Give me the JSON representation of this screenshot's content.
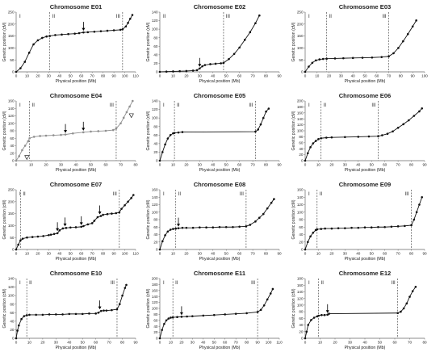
{
  "chart_data": [
    {
      "type": "scatter",
      "title": "Chromosome E01",
      "xlabel": "Physical position (Mb)",
      "ylabel": "Genetic position (cM)",
      "xlim": [
        0,
        110
      ],
      "xticks": [
        0,
        10,
        20,
        30,
        40,
        50,
        60,
        70,
        80,
        90,
        100,
        110
      ],
      "ylim": [
        0,
        250
      ],
      "yticks": [
        0,
        50,
        100,
        150,
        200,
        250
      ],
      "regions": [
        "I",
        "II",
        "III"
      ],
      "boundaries": [
        31,
        98
      ],
      "x": [
        0,
        4,
        8,
        12,
        16,
        20,
        24,
        28,
        31,
        36,
        42,
        48,
        54,
        58,
        62,
        66,
        72,
        78,
        84,
        90,
        96,
        98,
        101,
        103,
        105,
        107
      ],
      "y": [
        0,
        15,
        42,
        80,
        115,
        132,
        142,
        148,
        150,
        154,
        156,
        158,
        160,
        162,
        165,
        166,
        168,
        170,
        172,
        174,
        176,
        178,
        190,
        205,
        222,
        238
      ],
      "markers": [
        {
          "x": 62,
          "y": 165,
          "type": "arrow"
        }
      ]
    },
    {
      "type": "scatter",
      "title": "Chromosome E02",
      "xlabel": "Physical position (Mb)",
      "ylabel": "Genetic position (cM)",
      "xlim": [
        0,
        90
      ],
      "xticks": [
        0,
        10,
        20,
        30,
        40,
        50,
        60,
        70,
        80,
        90
      ],
      "ylim": [
        0,
        140
      ],
      "yticks": [
        0,
        20,
        40,
        60,
        80,
        100,
        120,
        140
      ],
      "regions": [
        "II",
        "III"
      ],
      "boundaries": [
        48
      ],
      "x": [
        0,
        5,
        10,
        15,
        20,
        25,
        28,
        30,
        32,
        34,
        38,
        42,
        46,
        48,
        52,
        56,
        60,
        64,
        68,
        72,
        75
      ],
      "y": [
        0,
        0.5,
        1,
        1.5,
        2,
        3,
        4,
        8,
        13,
        16,
        18,
        19,
        20,
        21,
        30,
        42,
        57,
        75,
        93,
        114,
        132
      ],
      "markers": [
        {
          "x": 30,
          "y": 8,
          "type": "arrow"
        }
      ]
    },
    {
      "type": "scatter",
      "title": "Chromosome E03",
      "xlabel": "Physical position (Mb)",
      "ylabel": "Genetic position (cM)",
      "xlim": [
        0,
        100
      ],
      "xticks": [
        0,
        10,
        20,
        30,
        40,
        50,
        60,
        70,
        80,
        90,
        100
      ],
      "ylim": [
        0,
        250
      ],
      "yticks": [
        0,
        50,
        100,
        150,
        200,
        250
      ],
      "regions": [
        "I",
        "II",
        "III"
      ],
      "boundaries": [
        18,
        70
      ],
      "x": [
        0,
        3,
        6,
        9,
        12,
        15,
        18,
        25,
        32,
        40,
        48,
        56,
        64,
        70,
        74,
        78,
        82,
        86,
        90,
        93
      ],
      "y": [
        0,
        22,
        38,
        48,
        52,
        54,
        55,
        56,
        57,
        58,
        59,
        60,
        62,
        65,
        78,
        100,
        128,
        158,
        190,
        215
      ],
      "markers": []
    },
    {
      "type": "scatter",
      "title": "Chromosome E04",
      "xlabel": "Physical position (Mb)",
      "ylabel": "Genetic position (cM)",
      "xlim": [
        0,
        80
      ],
      "xticks": [
        0,
        10,
        20,
        30,
        40,
        50,
        60,
        70,
        80
      ],
      "ylim": [
        0,
        160
      ],
      "yticks": [
        0,
        20,
        40,
        60,
        80,
        100,
        120,
        140,
        160
      ],
      "regions": [
        "I",
        "II",
        "III"
      ],
      "boundaries": [
        9,
        67
      ],
      "x": [
        0,
        2,
        4,
        6,
        8,
        9,
        12,
        16,
        20,
        25,
        30,
        33,
        38,
        45,
        50,
        55,
        60,
        65,
        67,
        70,
        72,
        74,
        76,
        78
      ],
      "y": [
        0,
        12,
        28,
        40,
        52,
        60,
        64,
        66,
        67,
        68,
        69,
        70,
        73,
        76,
        78,
        79,
        80,
        82,
        86,
        100,
        115,
        130,
        145,
        160
      ],
      "markers": [
        {
          "x": 33,
          "y": 70,
          "type": "arrow"
        },
        {
          "x": 45,
          "y": 76,
          "type": "arrow"
        },
        {
          "x": 5,
          "y": 18,
          "type": "open-triangle"
        },
        {
          "x": 75,
          "y": 130,
          "type": "open-triangle"
        }
      ]
    },
    {
      "type": "scatter",
      "title": "Chromosome E05",
      "xlabel": "Physical position (Mb)",
      "ylabel": "Genetic position (cM)",
      "xlim": [
        0,
        90
      ],
      "xticks": [
        0,
        10,
        20,
        30,
        40,
        50,
        60,
        70,
        80,
        90
      ],
      "ylim": [
        0,
        140
      ],
      "yticks": [
        0,
        20,
        40,
        60,
        80,
        100,
        120,
        140
      ],
      "regions": [
        "I",
        "II",
        "III"
      ],
      "boundaries": [
        11,
        72
      ],
      "x": [
        0,
        2,
        4,
        6,
        8,
        10,
        11,
        14,
        17,
        72,
        74,
        76,
        78,
        80,
        82
      ],
      "y": [
        0,
        20,
        38,
        52,
        60,
        64,
        65,
        66,
        67,
        68,
        73,
        85,
        100,
        115,
        122
      ],
      "markers": []
    },
    {
      "type": "scatter",
      "title": "Chromosome E06",
      "xlabel": "Physical position (Mb)",
      "ylabel": "Genetic position (cM)",
      "xlim": [
        0,
        90
      ],
      "xticks": [
        0,
        10,
        20,
        30,
        40,
        50,
        60,
        70,
        80,
        90
      ],
      "ylim": [
        0,
        200
      ],
      "yticks": [
        0,
        20,
        40,
        60,
        80,
        100,
        120,
        140,
        160,
        180,
        200
      ],
      "regions": [
        "I",
        "II",
        "III"
      ],
      "boundaries": [
        12,
        55
      ],
      "x": [
        0,
        2,
        4,
        6,
        8,
        10,
        12,
        16,
        20,
        30,
        40,
        48,
        55,
        58,
        62,
        66,
        70,
        74,
        78,
        82,
        86,
        88
      ],
      "y": [
        0,
        25,
        45,
        58,
        66,
        72,
        75,
        77,
        78,
        79,
        80,
        81,
        82,
        85,
        90,
        98,
        110,
        122,
        135,
        150,
        165,
        175
      ],
      "markers": []
    },
    {
      "type": "scatter",
      "title": "Chromosome E07",
      "xlabel": "Physical position (Mb)",
      "ylabel": "Genetic position (cM)",
      "xlim": [
        0,
        110
      ],
      "xticks": [
        0,
        10,
        20,
        30,
        40,
        50,
        60,
        70,
        80,
        90,
        100,
        110
      ],
      "ylim": [
        0,
        250
      ],
      "yticks": [
        0,
        50,
        100,
        150,
        200,
        250
      ],
      "regions": [
        "I",
        "II",
        "III"
      ],
      "boundaries": [
        4,
        95
      ],
      "x": [
        0,
        2,
        4,
        6,
        10,
        15,
        20,
        25,
        30,
        32,
        35,
        38,
        40,
        43,
        46,
        50,
        55,
        60,
        62,
        66,
        70,
        72,
        75,
        78,
        80,
        84,
        88,
        92,
        95,
        97,
        100,
        103,
        106,
        108
      ],
      "y": [
        0,
        20,
        38,
        45,
        50,
        52,
        54,
        56,
        60,
        62,
        65,
        68,
        80,
        88,
        90,
        92,
        93,
        95,
        98,
        105,
        110,
        120,
        135,
        140,
        145,
        148,
        150,
        152,
        155,
        170,
        185,
        200,
        215,
        228
      ],
      "markers": [
        {
          "x": 38,
          "y": 70,
          "type": "arrow"
        },
        {
          "x": 45,
          "y": 90,
          "type": "arrow"
        },
        {
          "x": 60,
          "y": 95,
          "type": "arrow"
        },
        {
          "x": 77,
          "y": 140,
          "type": "arrow"
        }
      ]
    },
    {
      "type": "scatter",
      "title": "Chromosome E08",
      "xlabel": "Physical position (Mb)",
      "ylabel": "Genetic position (cM)",
      "xlim": [
        0,
        90
      ],
      "xticks": [
        0,
        10,
        20,
        30,
        40,
        50,
        60,
        70,
        80,
        90
      ],
      "ylim": [
        0,
        160
      ],
      "yticks": [
        0,
        20,
        40,
        60,
        80,
        100,
        120,
        140,
        160
      ],
      "regions": [
        "I",
        "II",
        "III"
      ],
      "boundaries": [
        12,
        65
      ],
      "x": [
        0,
        2,
        4,
        6,
        8,
        10,
        12,
        14,
        17,
        20,
        25,
        30,
        35,
        40,
        45,
        50,
        55,
        60,
        65,
        68,
        72,
        75,
        78,
        81,
        84,
        86
      ],
      "y": [
        0,
        22,
        38,
        48,
        53,
        55,
        56,
        57,
        58,
        58,
        58,
        59,
        59,
        59,
        60,
        60,
        60,
        61,
        62,
        66,
        75,
        85,
        95,
        110,
        125,
        135
      ],
      "markers": [
        {
          "x": 14,
          "y": 57,
          "type": "arrow"
        }
      ]
    },
    {
      "type": "scatter",
      "title": "Chromosome E09",
      "xlabel": "Physical position (Mb)",
      "ylabel": "Genetic position (cM)",
      "xlim": [
        0,
        90
      ],
      "xticks": [
        0,
        10,
        20,
        30,
        40,
        50,
        60,
        70,
        80,
        90
      ],
      "ylim": [
        0,
        160
      ],
      "yticks": [
        0,
        20,
        40,
        60,
        80,
        100,
        120,
        140,
        160
      ],
      "regions": [
        "I",
        "II",
        "III"
      ],
      "boundaries": [
        9,
        80
      ],
      "x": [
        0,
        2,
        4,
        6,
        8,
        9,
        12,
        15,
        20,
        25,
        30,
        35,
        40,
        45,
        50,
        55,
        60,
        65,
        70,
        75,
        80,
        82,
        84,
        86,
        88
      ],
      "y": [
        0,
        20,
        35,
        45,
        52,
        54,
        55,
        56,
        56,
        57,
        57,
        58,
        58,
        59,
        59,
        60,
        60,
        61,
        62,
        63,
        65,
        80,
        100,
        120,
        140
      ],
      "markers": []
    },
    {
      "type": "scatter",
      "title": "Chromosome E10",
      "xlabel": "Physical position (Mb)",
      "ylabel": "Genetic position (cM)",
      "xlim": [
        0,
        90
      ],
      "xticks": [
        0,
        10,
        20,
        30,
        40,
        50,
        60,
        70,
        80,
        90
      ],
      "ylim": [
        0,
        140
      ],
      "yticks": [
        0,
        20,
        40,
        60,
        80,
        100,
        120,
        140
      ],
      "regions": [
        "I",
        "II",
        "III"
      ],
      "boundaries": [
        8,
        76
      ],
      "x": [
        0,
        1,
        2,
        4,
        6,
        8,
        10,
        15,
        20,
        25,
        30,
        35,
        40,
        45,
        50,
        55,
        60,
        62,
        64,
        66,
        68,
        72,
        76,
        78,
        80,
        82,
        83
      ],
      "y": [
        0,
        18,
        30,
        45,
        52,
        54,
        55,
        55,
        55,
        56,
        56,
        56,
        57,
        57,
        57,
        58,
        58,
        60,
        64,
        65,
        65,
        66,
        68,
        80,
        100,
        118,
        125
      ],
      "markers": [
        {
          "x": 63,
          "y": 64,
          "type": "arrow"
        }
      ]
    },
    {
      "type": "scatter",
      "title": "Chromosome E11",
      "xlabel": "Physical position (Mb)",
      "ylabel": "Genetic position (cM)",
      "xlim": [
        0,
        110
      ],
      "xticks": [
        0,
        10,
        20,
        30,
        40,
        50,
        60,
        70,
        80,
        90,
        100,
        110
      ],
      "ylim": [
        0,
        200
      ],
      "yticks": [
        0,
        20,
        40,
        60,
        80,
        100,
        120,
        140,
        160,
        180,
        200
      ],
      "regions": [
        "I",
        "II",
        "III"
      ],
      "boundaries": [
        12,
        90
      ],
      "x": [
        0,
        2,
        4,
        6,
        8,
        10,
        12,
        16,
        20,
        25,
        30,
        40,
        50,
        60,
        70,
        80,
        90,
        93,
        96,
        99,
        102,
        104
      ],
      "y": [
        0,
        28,
        48,
        60,
        66,
        69,
        70,
        71,
        72,
        73,
        74,
        76,
        78,
        80,
        82,
        84,
        88,
        95,
        110,
        130,
        150,
        165
      ],
      "markers": [
        {
          "x": 20,
          "y": 72,
          "type": "arrow"
        }
      ]
    },
    {
      "type": "scatter",
      "title": "Chromosome E12",
      "xlabel": "Physical position (Mb)",
      "ylabel": "Genetic position (cM)",
      "xlim": [
        0,
        80
      ],
      "xticks": [
        0,
        10,
        20,
        30,
        40,
        50,
        60,
        70,
        80
      ],
      "ylim": [
        0,
        180
      ],
      "yticks": [
        0,
        20,
        40,
        60,
        80,
        100,
        120,
        140,
        160,
        180
      ],
      "regions": [
        "I",
        "II",
        "III"
      ],
      "boundaries": [
        9,
        62
      ],
      "x": [
        0,
        1,
        2,
        4,
        6,
        8,
        9,
        11,
        13,
        15,
        16,
        62,
        64,
        66,
        68,
        70,
        72,
        74
      ],
      "y": [
        0,
        20,
        40,
        55,
        62,
        66,
        68,
        70,
        70,
        71,
        74,
        76,
        80,
        90,
        105,
        125,
        142,
        155
      ],
      "markers": [
        {
          "x": 15,
          "y": 71,
          "type": "arrow"
        }
      ]
    }
  ]
}
